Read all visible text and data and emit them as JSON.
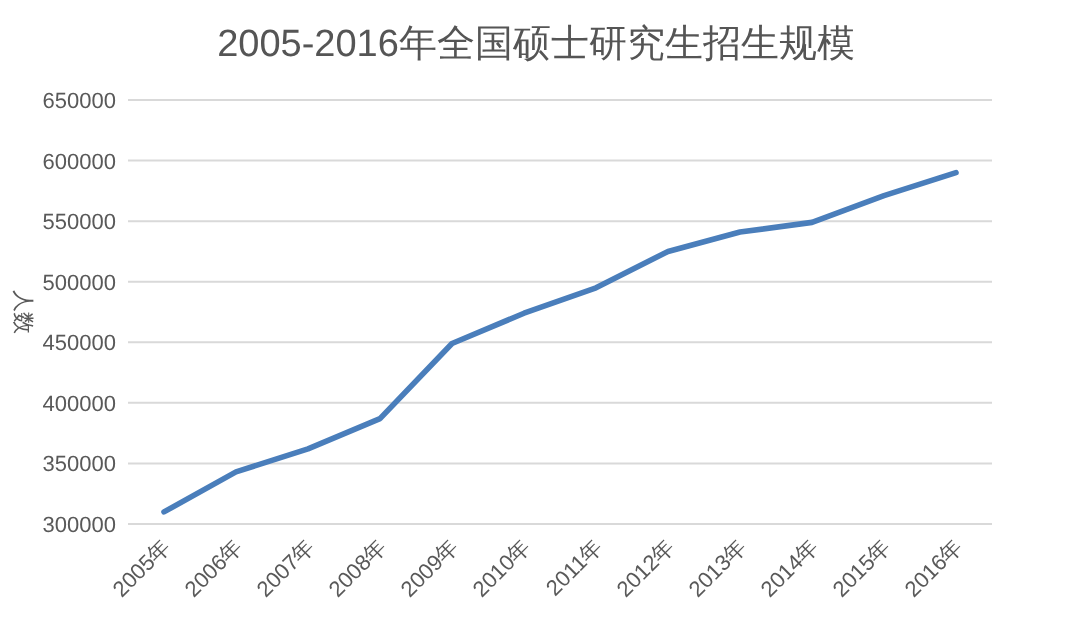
{
  "chart_data": {
    "type": "line",
    "title": "2005-2016年全国硕士研究生招生规模",
    "ylabel": "人数",
    "categories": [
      "2005年",
      "2006年",
      "2007年",
      "2008年",
      "2009年",
      "2010年",
      "2011年",
      "2012年",
      "2013年",
      "2014年",
      "2015年",
      "2016年"
    ],
    "series": [
      {
        "color": "#4a7ebb",
        "values": [
          310000,
          343000,
          362000,
          387000,
          449000,
          474000,
          495000,
          525000,
          541000,
          549000,
          571000,
          590000
        ]
      }
    ],
    "ylim": [
      300000,
      650000
    ],
    "yticks": [
      300000,
      350000,
      400000,
      450000,
      500000,
      550000,
      600000,
      650000
    ],
    "grid": "y",
    "line_style": "solid",
    "marker": "none"
  }
}
